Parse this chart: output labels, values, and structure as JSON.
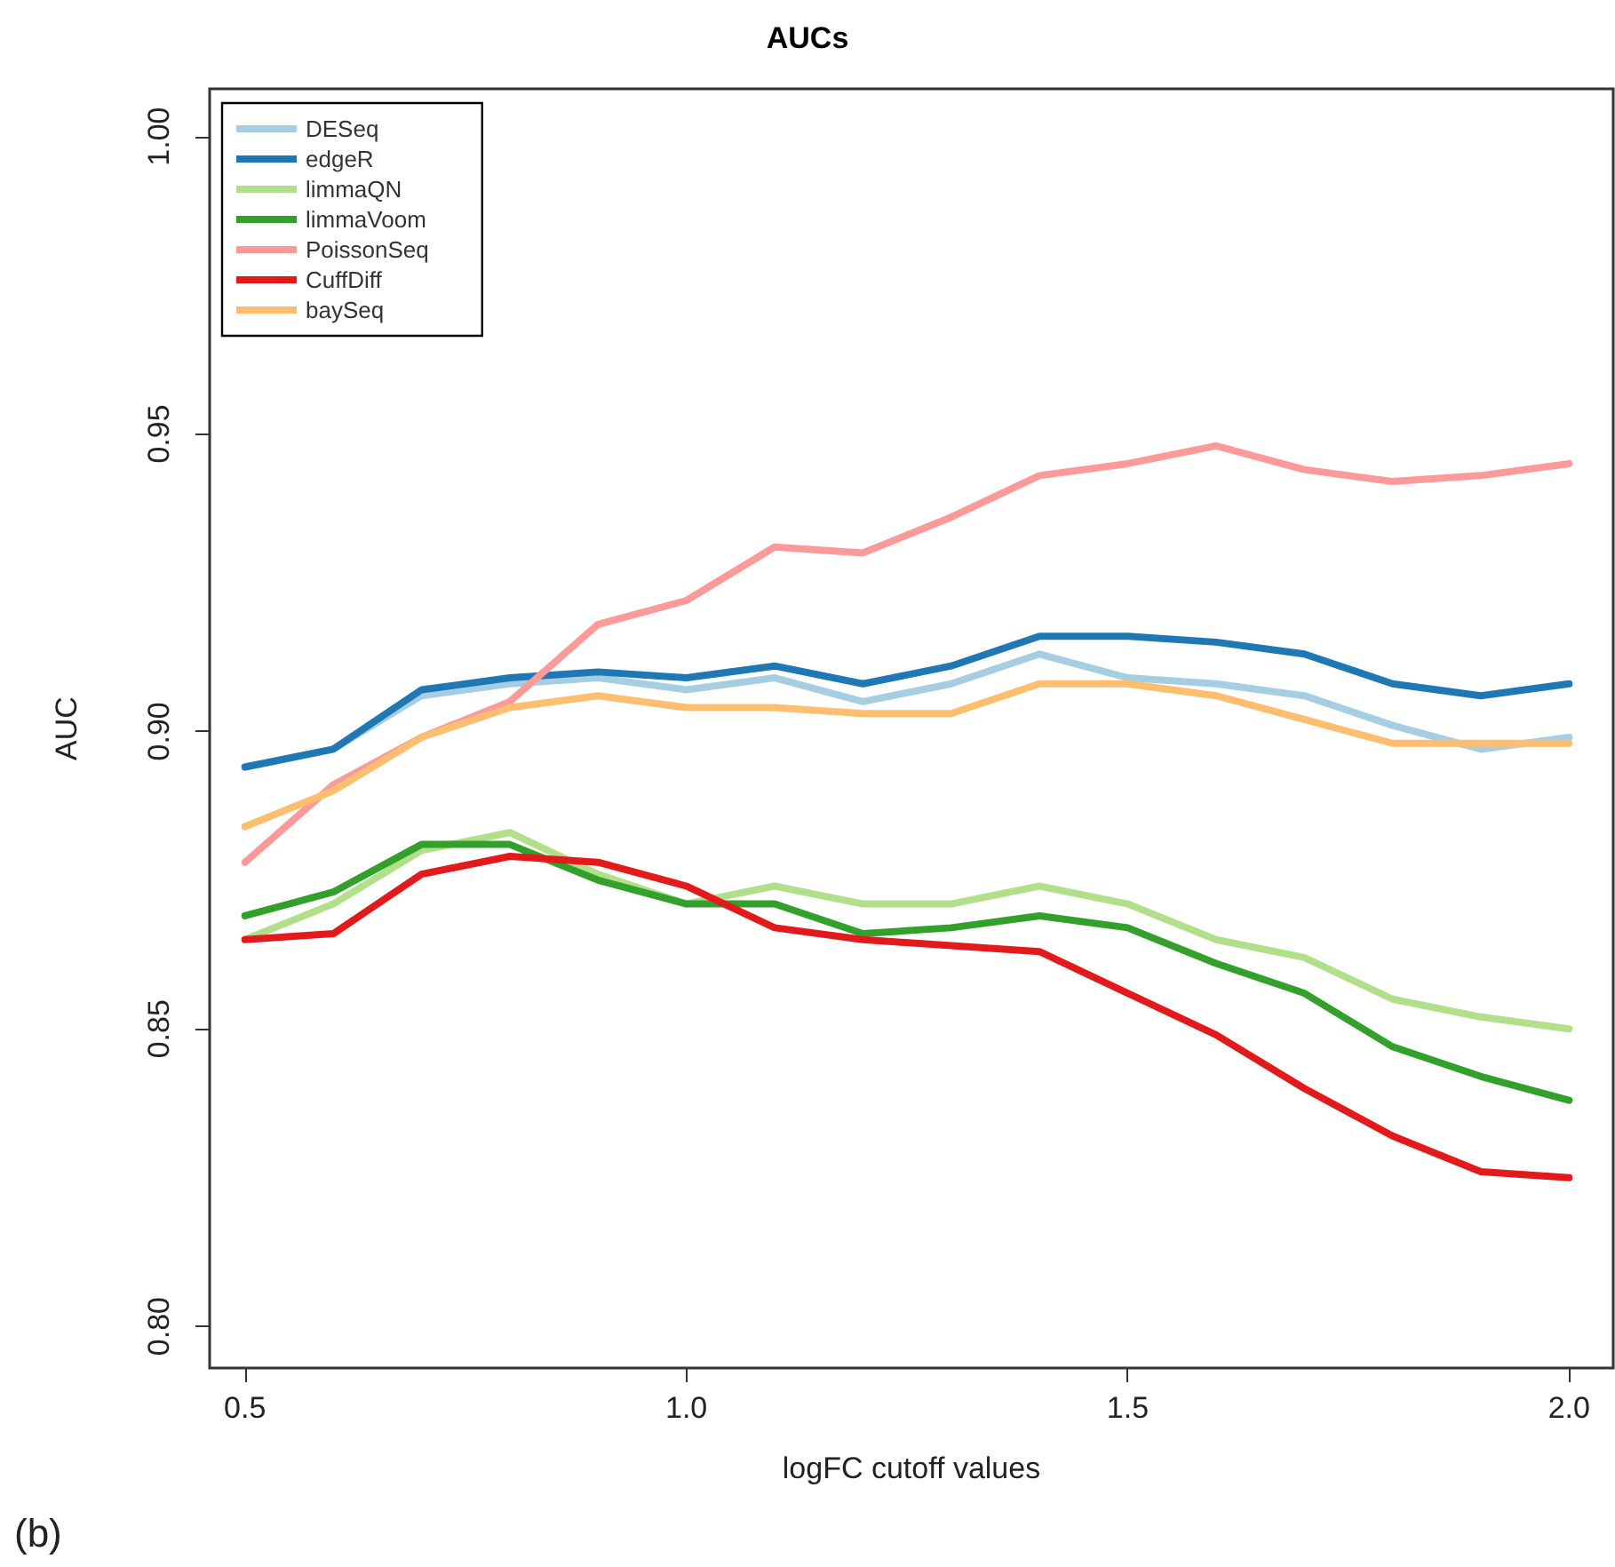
{
  "chart_data": {
    "type": "line",
    "title": "AUCs",
    "xlabel": "logFC cutoff values",
    "ylabel": "AUC",
    "annotations": [
      "(b)"
    ],
    "x": [
      0.5,
      0.6,
      0.7,
      0.8,
      0.9,
      1.0,
      1.1,
      1.2,
      1.3,
      1.4,
      1.5,
      1.6,
      1.7,
      1.8,
      1.9,
      2.0
    ],
    "series": [
      {
        "name": "DESeq",
        "color": "#a6cee3",
        "values": [
          0.894,
          0.897,
          0.906,
          0.908,
          0.909,
          0.907,
          0.909,
          0.905,
          0.908,
          0.913,
          0.909,
          0.908,
          0.906,
          0.901,
          0.897,
          0.899
        ]
      },
      {
        "name": "edgeR",
        "color": "#1f78b4",
        "values": [
          0.894,
          0.897,
          0.907,
          0.909,
          0.91,
          0.909,
          0.911,
          0.908,
          0.911,
          0.916,
          0.916,
          0.915,
          0.913,
          0.908,
          0.906,
          0.908
        ]
      },
      {
        "name": "limmaQN",
        "color": "#b2df8a",
        "values": [
          0.865,
          0.871,
          0.88,
          0.883,
          0.876,
          0.871,
          0.874,
          0.871,
          0.871,
          0.874,
          0.871,
          0.865,
          0.862,
          0.855,
          0.852,
          0.85
        ]
      },
      {
        "name": "limmaVoom",
        "color": "#33a02c",
        "values": [
          0.869,
          0.873,
          0.881,
          0.881,
          0.875,
          0.871,
          0.871,
          0.866,
          0.867,
          0.869,
          0.867,
          0.861,
          0.856,
          0.847,
          0.842,
          0.838
        ]
      },
      {
        "name": "PoissonSeq",
        "color": "#fb9a99",
        "values": [
          0.878,
          0.891,
          0.899,
          0.905,
          0.918,
          0.922,
          0.931,
          0.93,
          0.936,
          0.943,
          0.945,
          0.948,
          0.944,
          0.942,
          0.943,
          0.945
        ]
      },
      {
        "name": "CuffDiff",
        "color": "#e31a1c",
        "values": [
          0.865,
          0.866,
          0.876,
          0.879,
          0.878,
          0.874,
          0.867,
          0.865,
          0.864,
          0.863,
          0.856,
          0.849,
          0.84,
          0.832,
          0.826,
          0.825
        ]
      },
      {
        "name": "baySeq",
        "color": "#fdbf6f",
        "values": [
          0.884,
          0.89,
          0.899,
          0.904,
          0.906,
          0.904,
          0.904,
          0.903,
          0.903,
          0.908,
          0.908,
          0.906,
          0.902,
          0.898,
          0.898,
          0.898
        ]
      }
    ],
    "xlim": [
      0.46,
      2.05
    ],
    "ylim": [
      0.793,
      1.008
    ],
    "xticks": [
      {
        "value": 0.5,
        "label": "0.5"
      },
      {
        "value": 1.0,
        "label": "1.0"
      },
      {
        "value": 1.5,
        "label": "1.5"
      },
      {
        "value": 2.0,
        "label": "2.0"
      }
    ],
    "yticks": [
      {
        "value": 0.8,
        "label": "0.80"
      },
      {
        "value": 0.85,
        "label": "0.85"
      },
      {
        "value": 0.9,
        "label": "0.90"
      },
      {
        "value": 0.95,
        "label": "0.95"
      },
      {
        "value": 1.0,
        "label": "1.00"
      }
    ],
    "grid": false,
    "legend": "top left",
    "marker": "none",
    "line_style": "solid"
  }
}
